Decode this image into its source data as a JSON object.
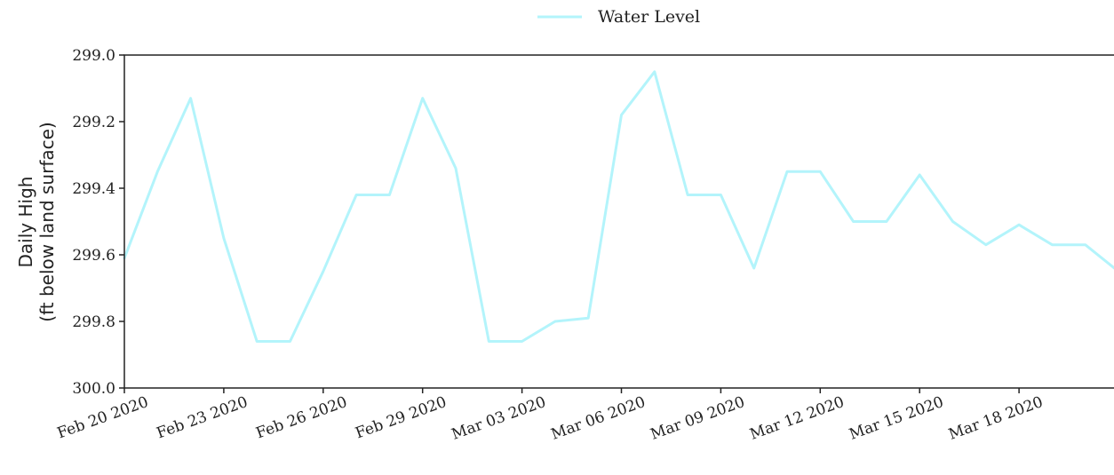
{
  "chart_data": {
    "type": "line",
    "ylabel": [
      "Daily High",
      "(ft below land surface)"
    ],
    "ylim": [
      299.0,
      300.0
    ],
    "y_inverted": true,
    "y_ticks": [
      {
        "value": 299.0,
        "label": "299.0"
      },
      {
        "value": 299.2,
        "label": "299.2"
      },
      {
        "value": 299.4,
        "label": "299.4"
      },
      {
        "value": 299.6,
        "label": "299.6"
      },
      {
        "value": 299.8,
        "label": "299.8"
      },
      {
        "value": 300.0,
        "label": "300.0"
      }
    ],
    "x_ticks": [
      "Feb 20 2020",
      "Feb 23 2020",
      "Feb 26 2020",
      "Feb 29 2020",
      "Mar 03 2020",
      "Mar 06 2020",
      "Mar 09 2020",
      "Mar 12 2020",
      "Mar 15 2020",
      "Mar 18 2020"
    ],
    "x": [
      "2020-02-20",
      "2020-02-21",
      "2020-02-22",
      "2020-02-23",
      "2020-02-24",
      "2020-02-25",
      "2020-02-26",
      "2020-02-27",
      "2020-02-28",
      "2020-02-29",
      "2020-03-01",
      "2020-03-02",
      "2020-03-03",
      "2020-03-04",
      "2020-03-05",
      "2020-03-06",
      "2020-03-07",
      "2020-03-08",
      "2020-03-09",
      "2020-03-10",
      "2020-03-11",
      "2020-03-12",
      "2020-03-13",
      "2020-03-14",
      "2020-03-15",
      "2020-03-16",
      "2020-03-17",
      "2020-03-18",
      "2020-03-19",
      "2020-03-20",
      "2020-03-21"
    ],
    "series": [
      {
        "name": "Water Level",
        "color": "#b3f4fb",
        "values": [
          299.61,
          299.35,
          299.13,
          299.55,
          299.86,
          299.86,
          299.65,
          299.42,
          299.42,
          299.13,
          299.34,
          299.86,
          299.86,
          299.8,
          299.79,
          299.18,
          299.05,
          299.42,
          299.42,
          299.64,
          299.35,
          299.35,
          299.5,
          299.5,
          299.36,
          299.5,
          299.57,
          299.51,
          299.57,
          299.57,
          299.65
        ]
      }
    ],
    "legend": {
      "position": "top-center",
      "entries": [
        "Water Level"
      ]
    },
    "grid": false
  }
}
